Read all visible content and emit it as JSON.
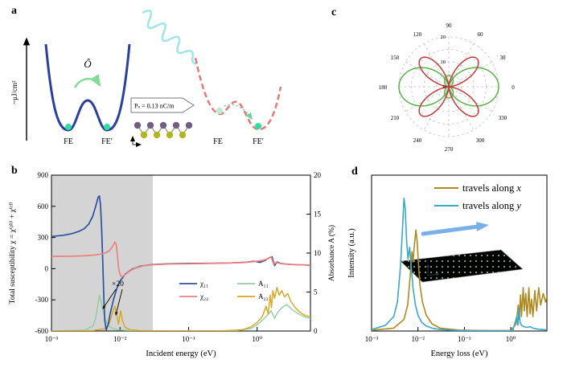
{
  "panel_labels": {
    "a": "a",
    "b": "b",
    "c": "c",
    "d": "d"
  },
  "panel_a": {
    "yaxis_label": "~μJ/cm²",
    "operator": "Ô",
    "left_well_labels": [
      "FE",
      "FE′"
    ],
    "right_well_labels": [
      "FE",
      "FE′"
    ],
    "inset_text": "Pₛ = 0.13 nC/m",
    "colors": {
      "left_curve": "#2a3f9e",
      "right_curve": "#e87878",
      "pulse": "#9fe6ea",
      "dot": "#2de0a0",
      "arrow": "#86d996"
    }
  },
  "chart_data": [
    {
      "id": "b",
      "type": "line",
      "xscale": "log",
      "xlabel": "Incident energy (eV)",
      "ylabel_left": "Total susceptibility χ = χ⁽ᵖʰ⁾ + χ⁽ᵉˡ⁾",
      "ylabel_right": "Absorbance A (%)",
      "xlim": [
        0.001,
        6
      ],
      "ylim_left": [
        -600,
        900
      ],
      "ylim_right": [
        0,
        20
      ],
      "xtick_labels": [
        "10⁻³",
        "10⁻²",
        "10⁻¹",
        "10⁰"
      ],
      "xtick_values": [
        0.001,
        0.01,
        0.1,
        1
      ],
      "ytick_left": [
        "900",
        "600",
        "300",
        "0",
        "-300",
        "-600"
      ],
      "ytick_right": [
        "20",
        "15",
        "10",
        "5",
        "0"
      ],
      "shaded_region": {
        "x0": 0.001,
        "x1": 0.03,
        "color": "#d4d4d4"
      },
      "annotation": "×20",
      "legend": [
        {
          "id": "chi11",
          "label": "χ₁₁",
          "color": "#2a52a0"
        },
        {
          "id": "chi22",
          "label": "χ₂₂",
          "color": "#ef8080"
        },
        {
          "id": "A11",
          "label": "A₁₁",
          "color": "#8fcf9f"
        },
        {
          "id": "A22",
          "label": "A₂₂",
          "color": "#d9a51a"
        }
      ],
      "series": [
        {
          "id": "chi11",
          "axis": "left",
          "color": "#2a52a0",
          "points": [
            [
              0.001,
              310
            ],
            [
              0.0015,
              322
            ],
            [
              0.002,
              338
            ],
            [
              0.0025,
              358
            ],
            [
              0.003,
              385
            ],
            [
              0.0035,
              430
            ],
            [
              0.004,
              505
            ],
            [
              0.0045,
              620
            ],
            [
              0.0048,
              690
            ],
            [
              0.005,
              700
            ],
            [
              0.0052,
              610
            ],
            [
              0.0054,
              380
            ],
            [
              0.0056,
              60
            ],
            [
              0.0058,
              -280
            ],
            [
              0.006,
              -500
            ],
            [
              0.0063,
              -590
            ],
            [
              0.0067,
              -540
            ],
            [
              0.0072,
              -430
            ],
            [
              0.008,
              -300
            ],
            [
              0.009,
              -190
            ],
            [
              0.01,
              -120
            ],
            [
              0.012,
              -50
            ],
            [
              0.015,
              -5
            ],
            [
              0.02,
              25
            ],
            [
              0.03,
              40
            ],
            [
              0.05,
              47
            ],
            [
              0.1,
              50
            ],
            [
              0.2,
              52
            ],
            [
              0.4,
              55
            ],
            [
              0.7,
              62
            ],
            [
              0.9,
              72
            ],
            [
              1.1,
              60
            ],
            [
              1.3,
              80
            ],
            [
              1.5,
              105
            ],
            [
              1.65,
              115
            ],
            [
              1.8,
              30
            ],
            [
              1.95,
              65
            ],
            [
              2.2,
              50
            ],
            [
              2.6,
              45
            ],
            [
              3.2,
              40
            ],
            [
              4.5,
              36
            ],
            [
              6,
              34
            ]
          ]
        },
        {
          "id": "chi22",
          "axis": "left",
          "color": "#ef8080",
          "points": [
            [
              0.001,
              118
            ],
            [
              0.002,
              120
            ],
            [
              0.003,
              124
            ],
            [
              0.004,
              130
            ],
            [
              0.005,
              138
            ],
            [
              0.006,
              150
            ],
            [
              0.007,
              172
            ],
            [
              0.0078,
              215
            ],
            [
              0.0084,
              255
            ],
            [
              0.0088,
              235
            ],
            [
              0.0092,
              120
            ],
            [
              0.0096,
              -10
            ],
            [
              0.0102,
              -70
            ],
            [
              0.011,
              -75
            ],
            [
              0.012,
              -55
            ],
            [
              0.014,
              -20
            ],
            [
              0.017,
              8
            ],
            [
              0.022,
              28
            ],
            [
              0.03,
              38
            ],
            [
              0.05,
              44
            ],
            [
              0.1,
              47
            ],
            [
              0.3,
              52
            ],
            [
              0.6,
              58
            ],
            [
              0.9,
              68
            ],
            [
              1.2,
              80
            ],
            [
              1.45,
              95
            ],
            [
              1.6,
              115
            ],
            [
              1.75,
              40
            ],
            [
              1.9,
              60
            ],
            [
              2.1,
              52
            ],
            [
              2.5,
              46
            ],
            [
              3,
              42
            ],
            [
              4,
              38
            ],
            [
              6,
              35
            ]
          ]
        },
        {
          "id": "A11",
          "axis": "right",
          "color": "#8fcf9f",
          "points": [
            [
              0.001,
              0.02
            ],
            [
              0.003,
              0.1
            ],
            [
              0.004,
              0.6
            ],
            [
              0.0044,
              1.6
            ],
            [
              0.0048,
              3.6
            ],
            [
              0.005,
              4.6
            ],
            [
              0.0053,
              3.8
            ],
            [
              0.0057,
              2.4
            ],
            [
              0.0063,
              1.2
            ],
            [
              0.007,
              0.6
            ],
            [
              0.008,
              0.3
            ],
            [
              0.01,
              0.12
            ],
            [
              0.015,
              0.05
            ],
            [
              0.03,
              0.02
            ],
            [
              0.1,
              0.01
            ],
            [
              0.5,
              0.05
            ],
            [
              0.8,
              0.3
            ],
            [
              1.0,
              0.8
            ],
            [
              1.2,
              1.4
            ],
            [
              1.4,
              2.0
            ],
            [
              1.6,
              2.6
            ],
            [
              1.8,
              1.6
            ],
            [
              2.0,
              2.4
            ],
            [
              2.3,
              3.0
            ],
            [
              2.7,
              3.4
            ],
            [
              3.2,
              2.8
            ],
            [
              4,
              2.2
            ],
            [
              5,
              1.8
            ],
            [
              6,
              1.6
            ]
          ]
        },
        {
          "id": "A22",
          "axis": "right",
          "color": "#d9a51a",
          "points": [
            [
              0.001,
              0.01
            ],
            [
              0.004,
              0.05
            ],
            [
              0.006,
              0.3
            ],
            [
              0.007,
              1.0
            ],
            [
              0.0078,
              2.4
            ],
            [
              0.0084,
              3.2
            ],
            [
              0.009,
              2.0
            ],
            [
              0.0095,
              0.9
            ],
            [
              0.0102,
              2.6
            ],
            [
              0.0108,
              1.4
            ],
            [
              0.0118,
              0.5
            ],
            [
              0.014,
              0.15
            ],
            [
              0.02,
              0.05
            ],
            [
              0.05,
              0.02
            ],
            [
              0.3,
              0.02
            ],
            [
              0.6,
              0.15
            ],
            [
              0.8,
              0.5
            ],
            [
              1.0,
              1.1
            ],
            [
              1.2,
              1.9
            ],
            [
              1.35,
              3.2
            ],
            [
              1.45,
              2.2
            ],
            [
              1.55,
              4.6
            ],
            [
              1.62,
              3.0
            ],
            [
              1.7,
              5.2
            ],
            [
              1.8,
              4.2
            ],
            [
              1.95,
              5.6
            ],
            [
              2.1,
              4.6
            ],
            [
              2.3,
              5.2
            ],
            [
              2.5,
              4.4
            ],
            [
              2.8,
              4.8
            ],
            [
              3.1,
              3.8
            ],
            [
              3.6,
              3.0
            ],
            [
              4.2,
              2.4
            ],
            [
              5,
              2.0
            ],
            [
              6,
              1.8
            ]
          ]
        }
      ]
    },
    {
      "id": "c",
      "type": "polar",
      "rmax": 20,
      "angle_labels": [
        "0",
        "30",
        "60",
        "90",
        "120",
        "150",
        "180",
        "210",
        "240",
        "270",
        "300",
        "330"
      ],
      "radial_labels": [
        "0",
        "10",
        "20"
      ],
      "series": [
        {
          "id": "green-horizontal",
          "color": "#59b34a",
          "amplitude": 20,
          "petals": 2,
          "orientation_deg": 0,
          "sharpness": 2
        },
        {
          "id": "green-vertical",
          "color": "#59b34a",
          "amplitude": 4.5,
          "petals": 2,
          "orientation_deg": 90,
          "sharpness": 2
        },
        {
          "id": "red-diagonal",
          "color": "#c23b3b",
          "amplitude": 16,
          "petals": 4,
          "orientation_deg": 45,
          "sharpness": 2
        }
      ]
    },
    {
      "id": "d",
      "type": "line",
      "xscale": "log",
      "xlabel": "Energy loss (eV)",
      "ylabel_left_label": "Intensity (a.u.)",
      "xlim": [
        0.001,
        6
      ],
      "ylim_left": [
        0,
        1.08
      ],
      "xtick_labels": [
        "10⁻³",
        "10⁻²",
        "10⁻¹",
        "10⁰"
      ],
      "xtick_values": [
        0.001,
        0.01,
        0.1,
        1
      ],
      "legend": [
        {
          "id": "along-x",
          "label": "travels along ",
          "var": "x",
          "color": "#b08820"
        },
        {
          "id": "along-y",
          "label": "travels along ",
          "var": "y",
          "color": "#3aa8c8"
        }
      ],
      "series": [
        {
          "id": "along-x",
          "axis": "left",
          "color": "#b08820",
          "points": [
            [
              0.001,
              0.005
            ],
            [
              0.003,
              0.02
            ],
            [
              0.005,
              0.08
            ],
            [
              0.006,
              0.18
            ],
            [
              0.0068,
              0.38
            ],
            [
              0.0074,
              0.55
            ],
            [
              0.0078,
              0.48
            ],
            [
              0.0083,
              0.58
            ],
            [
              0.009,
              0.7
            ],
            [
              0.0096,
              0.62
            ],
            [
              0.0103,
              0.45
            ],
            [
              0.011,
              0.32
            ],
            [
              0.0125,
              0.2
            ],
            [
              0.015,
              0.11
            ],
            [
              0.02,
              0.05
            ],
            [
              0.03,
              0.02
            ],
            [
              0.08,
              0.006
            ],
            [
              0.3,
              0.003
            ],
            [
              1.0,
              0.003
            ],
            [
              1.3,
              0.05
            ],
            [
              1.45,
              0.18
            ],
            [
              1.52,
              0.08
            ],
            [
              1.62,
              0.25
            ],
            [
              1.7,
              0.1
            ],
            [
              1.85,
              0.3
            ],
            [
              1.95,
              0.14
            ],
            [
              2.1,
              0.26
            ],
            [
              2.25,
              0.1
            ],
            [
              2.45,
              0.3
            ],
            [
              2.6,
              0.12
            ],
            [
              2.8,
              0.22
            ],
            [
              3.0,
              0.1
            ],
            [
              3.3,
              0.28
            ],
            [
              3.6,
              0.14
            ],
            [
              4.0,
              0.3
            ],
            [
              4.4,
              0.18
            ],
            [
              5.0,
              0.26
            ],
            [
              5.6,
              0.2
            ],
            [
              6,
              0.24
            ]
          ]
        },
        {
          "id": "along-y",
          "axis": "left",
          "color": "#3aa8c8",
          "points": [
            [
              0.001,
              0.01
            ],
            [
              0.002,
              0.04
            ],
            [
              0.003,
              0.1
            ],
            [
              0.0036,
              0.2
            ],
            [
              0.0042,
              0.45
            ],
            [
              0.0047,
              0.75
            ],
            [
              0.005,
              0.92
            ],
            [
              0.0053,
              0.85
            ],
            [
              0.0057,
              0.62
            ],
            [
              0.0061,
              0.5
            ],
            [
              0.0066,
              0.58
            ],
            [
              0.007,
              0.48
            ],
            [
              0.0078,
              0.3
            ],
            [
              0.0088,
              0.18
            ],
            [
              0.01,
              0.11
            ],
            [
              0.012,
              0.06
            ],
            [
              0.015,
              0.035
            ],
            [
              0.02,
              0.02
            ],
            [
              0.03,
              0.01
            ],
            [
              0.06,
              0.005
            ],
            [
              0.15,
              0.003
            ],
            [
              0.5,
              0.002
            ],
            [
              1.1,
              0.002
            ],
            [
              1.35,
              0.1
            ],
            [
              1.42,
              0.04
            ],
            [
              1.5,
              0.16
            ],
            [
              1.58,
              0.06
            ],
            [
              1.7,
              0.04
            ],
            [
              1.9,
              0.03
            ],
            [
              2.2,
              0.025
            ],
            [
              2.6,
              0.03
            ],
            [
              3,
              0.02
            ],
            [
              4,
              0.012
            ],
            [
              6,
              0.008
            ]
          ]
        }
      ]
    }
  ]
}
